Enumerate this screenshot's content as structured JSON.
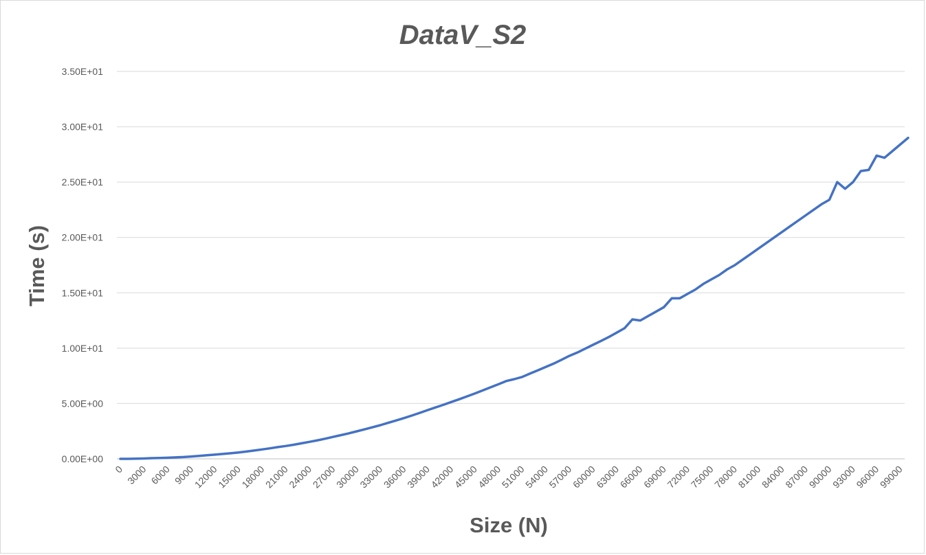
{
  "chart_data": {
    "type": "line",
    "title": "DataV_S2",
    "xlabel": "Size (N)",
    "ylabel": "Time (s)",
    "ylim": [
      0,
      35
    ],
    "grid": true,
    "legend": "none",
    "y_ticks": [
      {
        "value": 0,
        "label": "0.00E+00"
      },
      {
        "value": 5,
        "label": "5.00E+00"
      },
      {
        "value": 10,
        "label": "1.00E+01"
      },
      {
        "value": 15,
        "label": "1.50E+01"
      },
      {
        "value": 20,
        "label": "2.00E+01"
      },
      {
        "value": 25,
        "label": "2.50E+01"
      },
      {
        "value": 30,
        "label": "3.00E+01"
      },
      {
        "value": 35,
        "label": "3.50E+01"
      }
    ],
    "x_tick_labels": [
      "0",
      "3000",
      "6000",
      "9000",
      "12000",
      "15000",
      "18000",
      "21000",
      "24000",
      "27000",
      "30000",
      "33000",
      "36000",
      "39000",
      "42000",
      "45000",
      "48000",
      "51000",
      "54000",
      "57000",
      "60000",
      "63000",
      "66000",
      "69000",
      "72000",
      "75000",
      "78000",
      "81000",
      "84000",
      "87000",
      "90000",
      "93000",
      "96000",
      "99000"
    ],
    "series": [
      {
        "color": "#4472c4",
        "x": [
          0,
          1000,
          2000,
          3000,
          4000,
          5000,
          6000,
          7000,
          8000,
          9000,
          10000,
          11000,
          12000,
          13000,
          14000,
          15000,
          16000,
          17000,
          18000,
          19000,
          20000,
          21000,
          22000,
          23000,
          24000,
          25000,
          26000,
          27000,
          28000,
          29000,
          30000,
          31000,
          32000,
          33000,
          34000,
          35000,
          36000,
          37000,
          38000,
          39000,
          40000,
          41000,
          42000,
          43000,
          44000,
          45000,
          46000,
          47000,
          48000,
          49000,
          50000,
          51000,
          52000,
          53000,
          54000,
          55000,
          56000,
          57000,
          58000,
          59000,
          60000,
          61000,
          62000,
          63000,
          64000,
          65000,
          66000,
          67000,
          68000,
          69000,
          70000,
          71000,
          72000,
          73000,
          74000,
          75000,
          76000,
          77000,
          78000,
          79000,
          80000,
          81000,
          82000,
          83000,
          84000,
          85000,
          86000,
          87000,
          88000,
          89000,
          90000,
          91000,
          92000,
          93000,
          94000,
          95000,
          96000,
          97000,
          98000,
          99000,
          100000
        ],
        "values": [
          0.0,
          0.0,
          0.01,
          0.03,
          0.06,
          0.08,
          0.1,
          0.13,
          0.16,
          0.21,
          0.26,
          0.32,
          0.38,
          0.44,
          0.5,
          0.58,
          0.66,
          0.75,
          0.85,
          0.95,
          1.06,
          1.16,
          1.27,
          1.4,
          1.53,
          1.67,
          1.82,
          1.98,
          2.14,
          2.3,
          2.48,
          2.66,
          2.85,
          3.04,
          3.25,
          3.46,
          3.68,
          3.91,
          4.15,
          4.4,
          4.64,
          4.88,
          5.13,
          5.38,
          5.64,
          5.9,
          6.18,
          6.46,
          6.74,
          7.03,
          7.2,
          7.4,
          7.7,
          8.0,
          8.3,
          8.6,
          8.95,
          9.3,
          9.6,
          9.95,
          10.3,
          10.65,
          11.0,
          11.4,
          11.8,
          12.6,
          12.5,
          12.9,
          13.3,
          13.7,
          14.5,
          14.5,
          14.9,
          15.3,
          15.8,
          16.2,
          16.6,
          17.1,
          17.5,
          18.0,
          18.5,
          19.0,
          19.5,
          20.0,
          20.5,
          21.0,
          21.5,
          22.0,
          22.5,
          23.0,
          23.4,
          25.0,
          24.4,
          25.0,
          26.0,
          26.1,
          27.4,
          27.2,
          27.8,
          28.4,
          29.0
        ]
      }
    ]
  }
}
